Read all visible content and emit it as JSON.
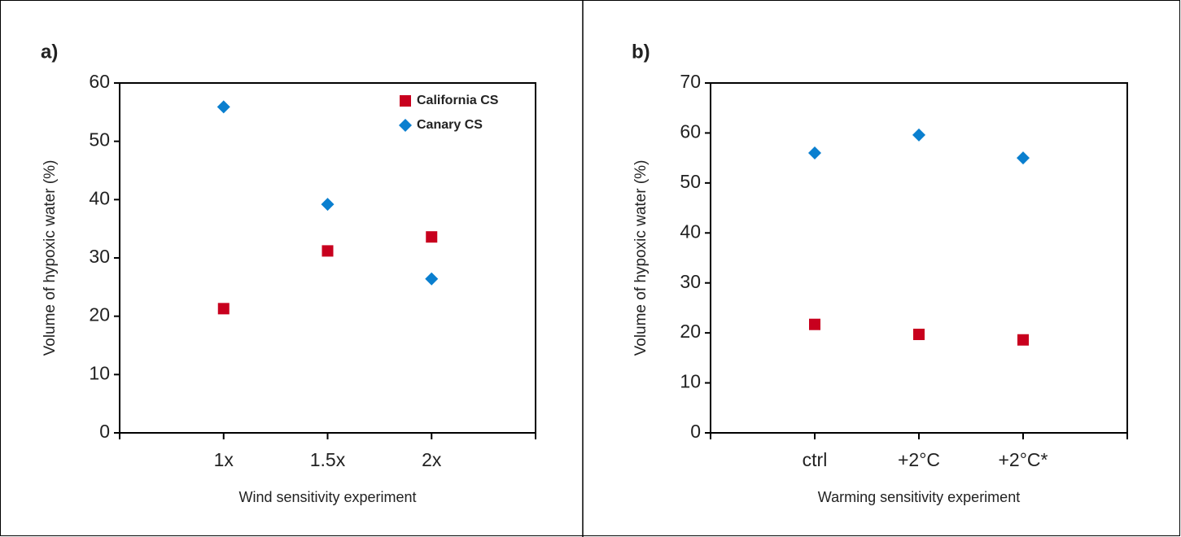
{
  "chart_data": [
    {
      "type": "scatter",
      "title": "a)",
      "xlabel": "Wind sensitivity experiment",
      "ylabel": "Volume of hypoxic water (%)",
      "categories": [
        null,
        "1x",
        "1.5x",
        "2x",
        null
      ],
      "series": [
        {
          "name": "California CS",
          "color": "#c8001e",
          "marker": "square",
          "values": [
            null,
            21.3,
            31.2,
            33.6,
            null
          ]
        },
        {
          "name": "Canary CS",
          "color": "#0a7fcf",
          "marker": "diamond",
          "values": [
            null,
            55.9,
            39.2,
            26.4,
            null
          ]
        }
      ],
      "ylim": [
        0,
        60
      ],
      "yticks": [
        0,
        10,
        20,
        30,
        40,
        50,
        60
      ],
      "legend": "upper right"
    },
    {
      "type": "scatter",
      "title": "b)",
      "xlabel": "Warming sensitivity experiment",
      "ylabel": "Volume of hypoxic water (%)",
      "categories": [
        null,
        "ctrl",
        "+2°C",
        "+2°C*",
        null
      ],
      "series": [
        {
          "color": "#c8001e",
          "marker": "square",
          "values": [
            null,
            21.7,
            19.7,
            18.6,
            null
          ]
        },
        {
          "color": "#0a7fcf",
          "marker": "diamond",
          "values": [
            null,
            56.0,
            59.6,
            55.0,
            null
          ]
        }
      ],
      "ylim": [
        0,
        70
      ],
      "yticks": [
        0,
        10,
        20,
        30,
        40,
        50,
        60,
        70
      ]
    }
  ]
}
